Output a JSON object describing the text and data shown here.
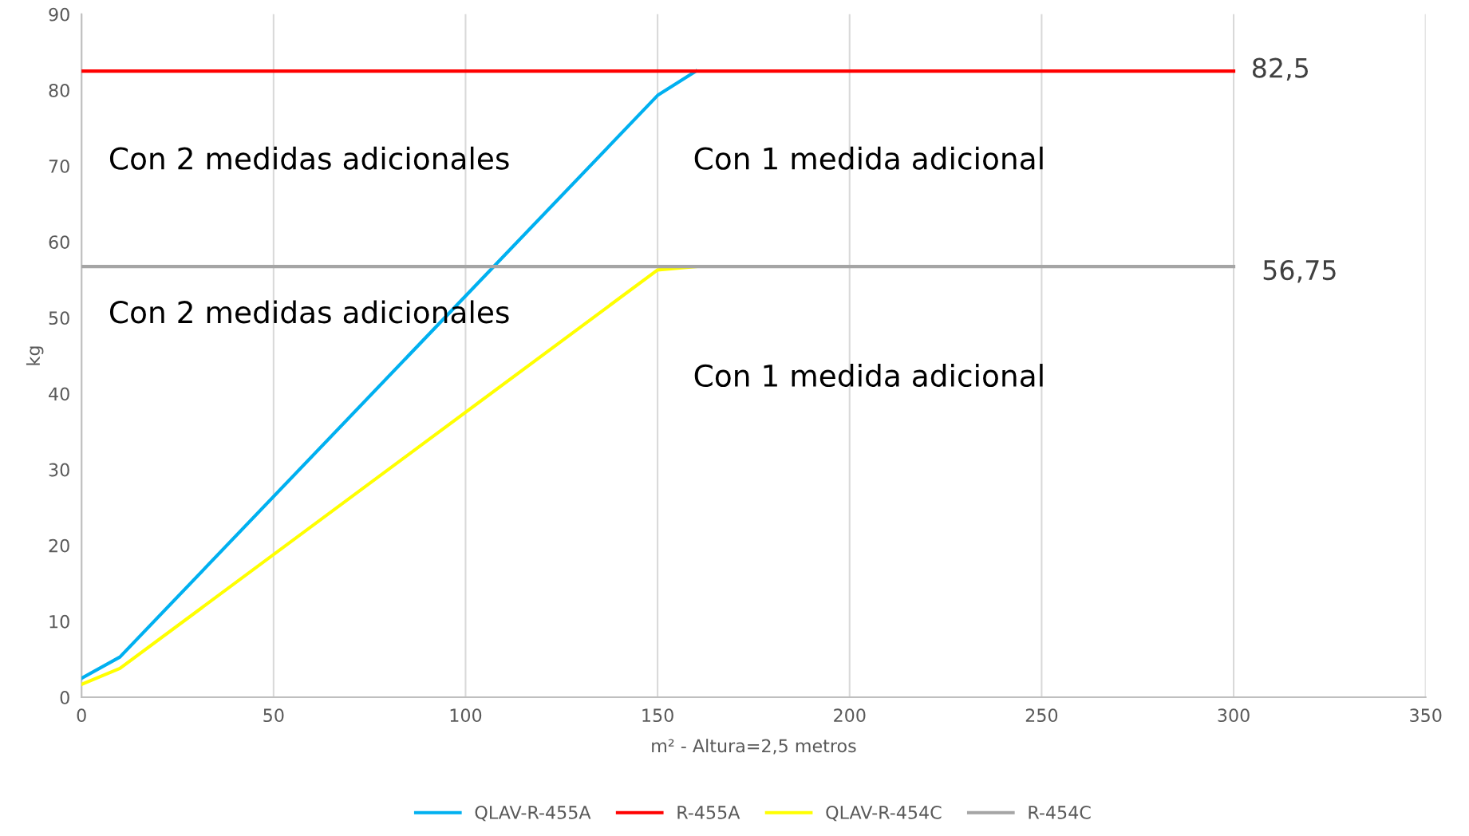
{
  "chart_data": {
    "type": "line",
    "xlabel": "m² - Altura=2,5 metros",
    "ylabel": "kg",
    "series": [
      {
        "name": "QLAV-R-455A",
        "color": "#00b0f0",
        "x": [
          0,
          10,
          150,
          160
        ],
        "values": [
          2.5,
          5.3,
          79.3,
          82.5
        ]
      },
      {
        "name": "R-455A",
        "color": "#ff0000",
        "x": [
          0,
          300
        ],
        "values": [
          82.5,
          82.5
        ]
      },
      {
        "name": "QLAV-R-454C",
        "color": "#ffff00",
        "x": [
          0,
          10,
          150,
          160
        ],
        "values": [
          1.7,
          3.8,
          56.3,
          56.75
        ]
      },
      {
        "name": "R-454C",
        "color": "#a5a5a5",
        "x": [
          0,
          300
        ],
        "values": [
          56.75,
          56.75
        ]
      }
    ],
    "xlim": [
      0,
      350
    ],
    "xticks": [
      0,
      50,
      100,
      150,
      200,
      250,
      300,
      350
    ],
    "ylim": [
      0,
      90
    ],
    "yticks": [
      0,
      10,
      20,
      30,
      40,
      50,
      60,
      70,
      80,
      90
    ],
    "grid": "x",
    "legend": "bottom",
    "marker": "none",
    "line_style": "solid",
    "annotations": [
      "Con 2 medidas adicionales",
      "Con 1 medida adicional",
      "Con 2 medidas adicionales",
      "Con 1 medida adicional",
      "82,5",
      "56,75"
    ]
  }
}
